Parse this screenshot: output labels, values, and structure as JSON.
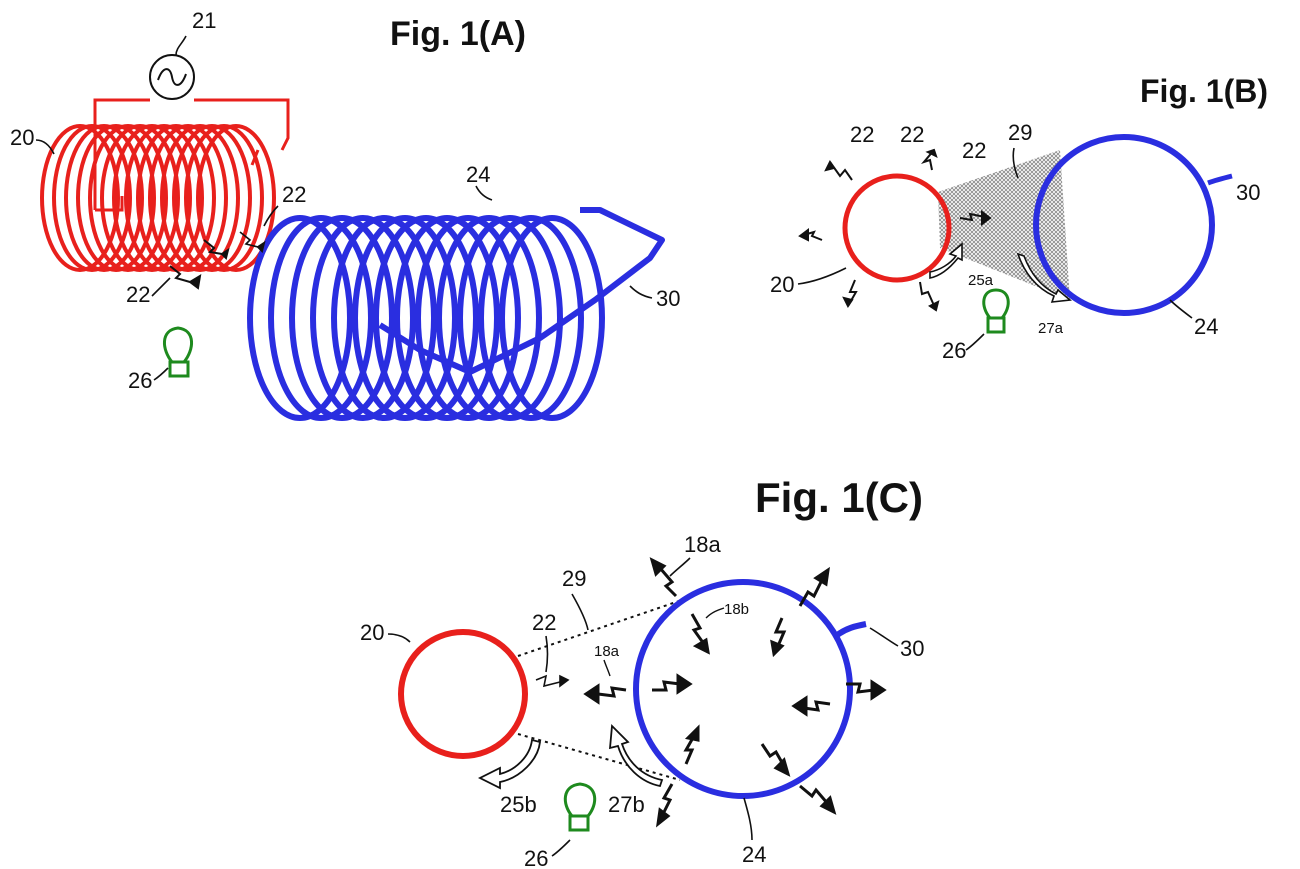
{
  "colors": {
    "primary_coil": "#e8201c",
    "secondary_coil": "#2a2ee0",
    "lamp": "#1e8a1e",
    "ink": "#111111",
    "field": "#9a9a9a"
  },
  "figures": {
    "a": {
      "title": "Fig. 1(A)",
      "labels": {
        "source": "21",
        "primary": "20",
        "field_1": "22",
        "field_2": "22",
        "secondary": "24",
        "lead": "30",
        "lamp": "26"
      },
      "icons": [
        "ac-source-icon",
        "lamp-icon"
      ]
    },
    "b": {
      "title": "Fig. 1(B)",
      "labels": {
        "field_1": "22",
        "field_2": "22",
        "field_3": "22",
        "overlap": "29",
        "lead": "30",
        "primary": "20",
        "flow_primary": "25a",
        "flow_secondary": "27a",
        "secondary": "24",
        "lamp": "26"
      },
      "icons": [
        "lamp-icon"
      ]
    },
    "c": {
      "title": "Fig. 1(C)",
      "labels": {
        "field_outer": "18a",
        "field_inner": "18b",
        "field_mid": "18a",
        "field_primary": "22",
        "overlap": "29",
        "primary": "20",
        "lead": "30",
        "flow_primary": "25b",
        "flow_secondary": "27b",
        "lamp": "26",
        "secondary": "24"
      },
      "icons": [
        "lamp-icon"
      ]
    }
  }
}
